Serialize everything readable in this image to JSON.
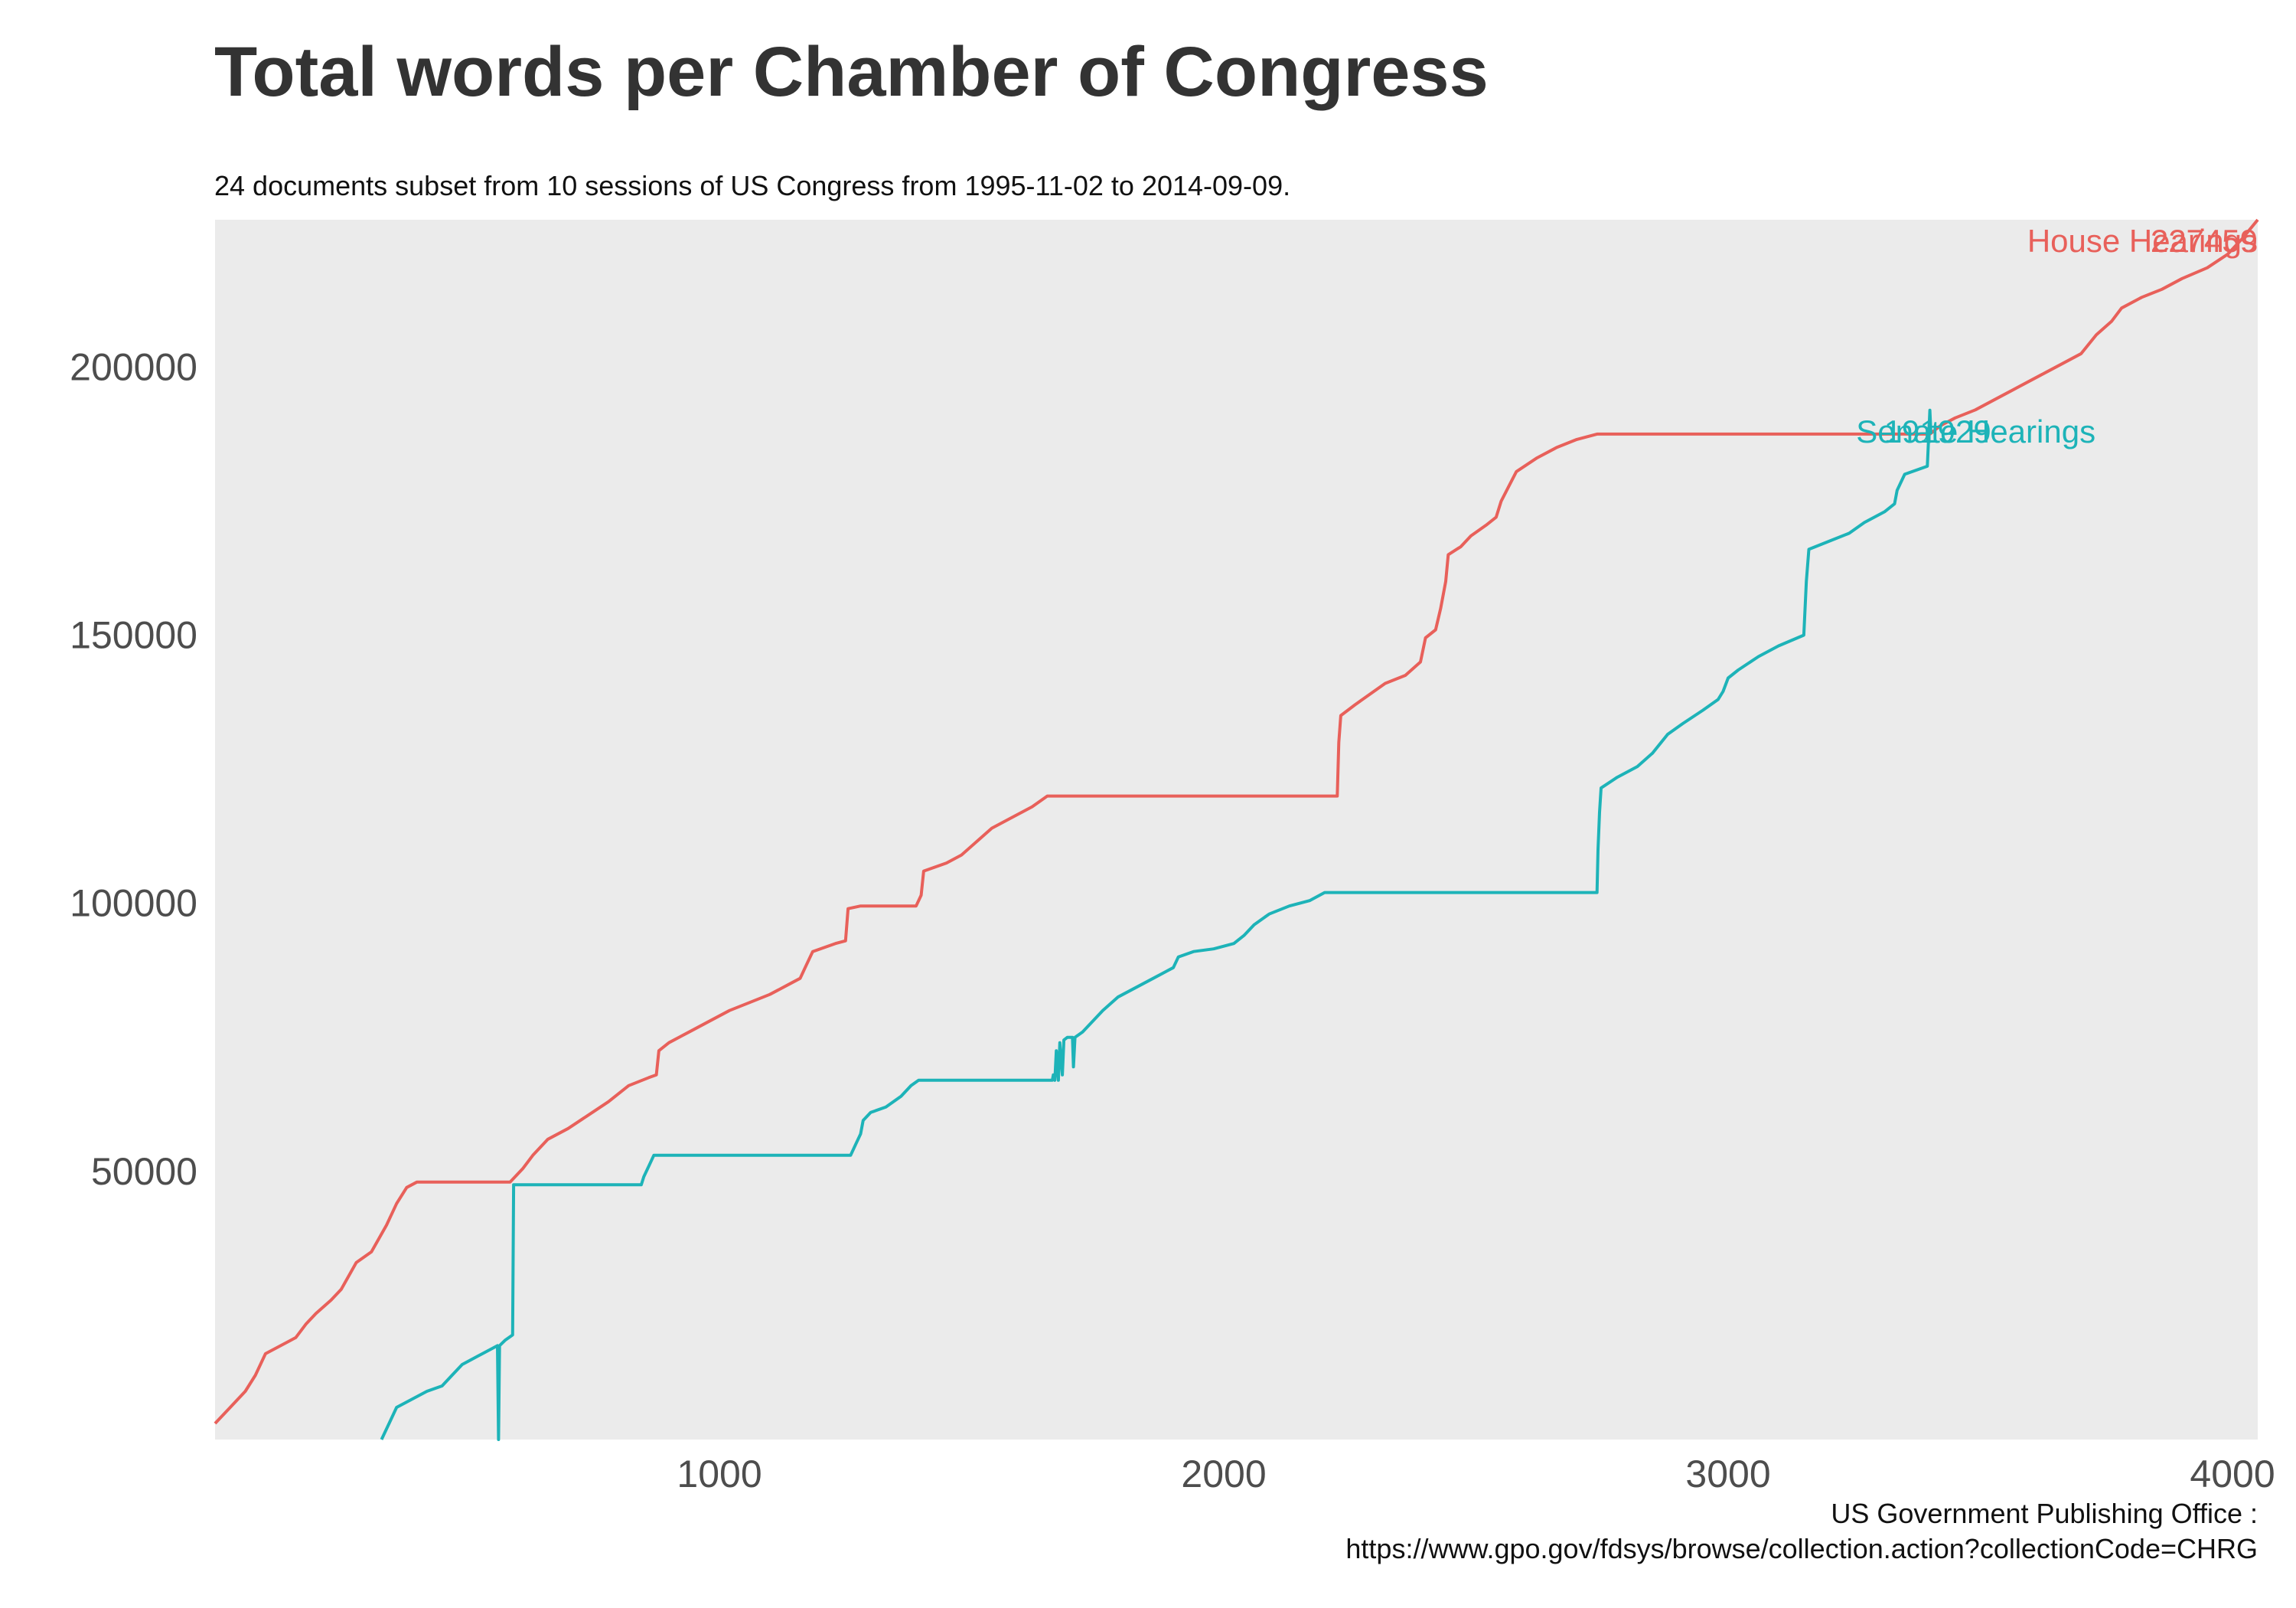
{
  "title": "Total words per Chamber of Congress",
  "subtitle": "24 documents subset from 10 sessions of US Congress from 1995-11-02 to 2014-09-09.",
  "caption": {
    "line1": "US Government Publishing Office :",
    "line2": "https://www.gpo.gov/fdsys/browse/collection.action?collectionCode=CHRG"
  },
  "chart_data": {
    "type": "line",
    "title": "Total words per Chamber of Congress",
    "xlabel": "",
    "ylabel": "",
    "xlim": [
      0,
      4050
    ],
    "ylim": [
      0,
      227459
    ],
    "x_ticks": [
      1000,
      2000,
      3000,
      4000
    ],
    "y_ticks": [
      50000,
      100000,
      150000,
      200000
    ],
    "x_tick_labels": [
      "1000",
      "2000",
      "3000",
      "4000"
    ],
    "y_tick_labels": [
      "50000",
      "100000",
      "150000",
      "200000"
    ],
    "grid": false,
    "panel_color": "#ebebeb",
    "series": [
      {
        "name": "House Hearings",
        "color": "#e8605a",
        "end_label": "227459",
        "points": [
          [
            0,
            3000
          ],
          [
            30,
            6000
          ],
          [
            60,
            9000
          ],
          [
            80,
            12000
          ],
          [
            100,
            16000
          ],
          [
            130,
            17500
          ],
          [
            160,
            19000
          ],
          [
            180,
            21500
          ],
          [
            200,
            23500
          ],
          [
            230,
            26000
          ],
          [
            250,
            28000
          ],
          [
            280,
            33000
          ],
          [
            310,
            35000
          ],
          [
            340,
            40000
          ],
          [
            360,
            44000
          ],
          [
            380,
            47000
          ],
          [
            400,
            48000
          ],
          [
            585,
            48000
          ],
          [
            610,
            50500
          ],
          [
            630,
            53000
          ],
          [
            660,
            56000
          ],
          [
            700,
            58000
          ],
          [
            740,
            60500
          ],
          [
            780,
            63000
          ],
          [
            820,
            66000
          ],
          [
            860,
            67500
          ],
          [
            875,
            68000
          ],
          [
            880,
            72500
          ],
          [
            900,
            74000
          ],
          [
            940,
            76000
          ],
          [
            980,
            78000
          ],
          [
            1020,
            80000
          ],
          [
            1060,
            81500
          ],
          [
            1100,
            83000
          ],
          [
            1140,
            85000
          ],
          [
            1160,
            86000
          ],
          [
            1170,
            88000
          ],
          [
            1185,
            91000
          ],
          [
            1230,
            92500
          ],
          [
            1250,
            93000
          ],
          [
            1255,
            99000
          ],
          [
            1280,
            99500
          ],
          [
            1390,
            99500
          ],
          [
            1400,
            101500
          ],
          [
            1405,
            106000
          ],
          [
            1450,
            107500
          ],
          [
            1480,
            109000
          ],
          [
            1510,
            111500
          ],
          [
            1540,
            114000
          ],
          [
            1580,
            116000
          ],
          [
            1620,
            118000
          ],
          [
            1650,
            120000
          ],
          [
            2225,
            120000
          ],
          [
            2228,
            130000
          ],
          [
            2232,
            135000
          ],
          [
            2260,
            137000
          ],
          [
            2290,
            139000
          ],
          [
            2320,
            141000
          ],
          [
            2360,
            142500
          ],
          [
            2390,
            145000
          ],
          [
            2400,
            149500
          ],
          [
            2420,
            151000
          ],
          [
            2430,
            155000
          ],
          [
            2440,
            160000
          ],
          [
            2445,
            165000
          ],
          [
            2470,
            166500
          ],
          [
            2490,
            168500
          ],
          [
            2520,
            170500
          ],
          [
            2540,
            172000
          ],
          [
            2550,
            175000
          ],
          [
            2580,
            180500
          ],
          [
            2620,
            183000
          ],
          [
            2660,
            185000
          ],
          [
            2700,
            186500
          ],
          [
            2740,
            187500
          ],
          [
            3400,
            187500
          ],
          [
            3420,
            189000
          ],
          [
            3450,
            190500
          ],
          [
            3490,
            192000
          ],
          [
            3530,
            194000
          ],
          [
            3560,
            195500
          ],
          [
            3600,
            197500
          ],
          [
            3630,
            199000
          ],
          [
            3660,
            200500
          ],
          [
            3700,
            202500
          ],
          [
            3730,
            206000
          ],
          [
            3760,
            208500
          ],
          [
            3780,
            211000
          ],
          [
            3820,
            213000
          ],
          [
            3860,
            214500
          ],
          [
            3900,
            216500
          ],
          [
            3950,
            218500
          ],
          [
            3990,
            221000
          ],
          [
            4020,
            224000
          ],
          [
            4050,
            227459
          ]
        ]
      },
      {
        "name": "Senate Hearings",
        "color": "#1db3b8",
        "end_label": "191929",
        "points": [
          [
            330,
            0
          ],
          [
            345,
            3000
          ],
          [
            360,
            6000
          ],
          [
            380,
            7000
          ],
          [
            400,
            8000
          ],
          [
            420,
            9000
          ],
          [
            450,
            10000
          ],
          [
            470,
            12000
          ],
          [
            490,
            14000
          ],
          [
            520,
            15500
          ],
          [
            550,
            17000
          ],
          [
            560,
            17500
          ],
          [
            562,
            0
          ],
          [
            564,
            17500
          ],
          [
            575,
            18500
          ],
          [
            590,
            19500
          ],
          [
            592,
            47500
          ],
          [
            845,
            47500
          ],
          [
            850,
            49000
          ],
          [
            860,
            51000
          ],
          [
            870,
            53000
          ],
          [
            1260,
            53000
          ],
          [
            1270,
            55000
          ],
          [
            1280,
            57000
          ],
          [
            1285,
            59500
          ],
          [
            1300,
            61000
          ],
          [
            1330,
            62000
          ],
          [
            1360,
            64000
          ],
          [
            1380,
            66000
          ],
          [
            1395,
            67000
          ],
          [
            1660,
            67000
          ],
          [
            1662,
            68000
          ],
          [
            1665,
            67000
          ],
          [
            1668,
            72500
          ],
          [
            1672,
            67000
          ],
          [
            1675,
            74000
          ],
          [
            1680,
            68000
          ],
          [
            1683,
            74500
          ],
          [
            1690,
            75000
          ],
          [
            1700,
            75000
          ],
          [
            1702,
            69500
          ],
          [
            1705,
            75000
          ],
          [
            1720,
            76000
          ],
          [
            1740,
            78000
          ],
          [
            1760,
            80000
          ],
          [
            1790,
            82500
          ],
          [
            1820,
            84000
          ],
          [
            1860,
            86000
          ],
          [
            1900,
            88000
          ],
          [
            1910,
            90000
          ],
          [
            1940,
            91000
          ],
          [
            1980,
            91500
          ],
          [
            2020,
            92500
          ],
          [
            2040,
            94000
          ],
          [
            2060,
            96000
          ],
          [
            2090,
            98000
          ],
          [
            2130,
            99500
          ],
          [
            2170,
            100500
          ],
          [
            2200,
            102000
          ],
          [
            2740,
            102000
          ],
          [
            2742,
            110000
          ],
          [
            2745,
            117000
          ],
          [
            2748,
            121500
          ],
          [
            2780,
            123500
          ],
          [
            2820,
            125500
          ],
          [
            2850,
            128000
          ],
          [
            2880,
            131500
          ],
          [
            2910,
            133500
          ],
          [
            2950,
            136000
          ],
          [
            2980,
            138000
          ],
          [
            2990,
            139500
          ],
          [
            3000,
            142000
          ],
          [
            3020,
            143500
          ],
          [
            3060,
            146000
          ],
          [
            3100,
            148000
          ],
          [
            3150,
            150000
          ],
          [
            3155,
            160000
          ],
          [
            3160,
            166000
          ],
          [
            3200,
            167500
          ],
          [
            3240,
            169000
          ],
          [
            3270,
            171000
          ],
          [
            3310,
            173000
          ],
          [
            3330,
            174500
          ],
          [
            3335,
            177000
          ],
          [
            3350,
            180000
          ],
          [
            3395,
            181500
          ],
          [
            3400,
            191929
          ],
          [
            3402,
            187500
          ]
        ]
      }
    ]
  }
}
